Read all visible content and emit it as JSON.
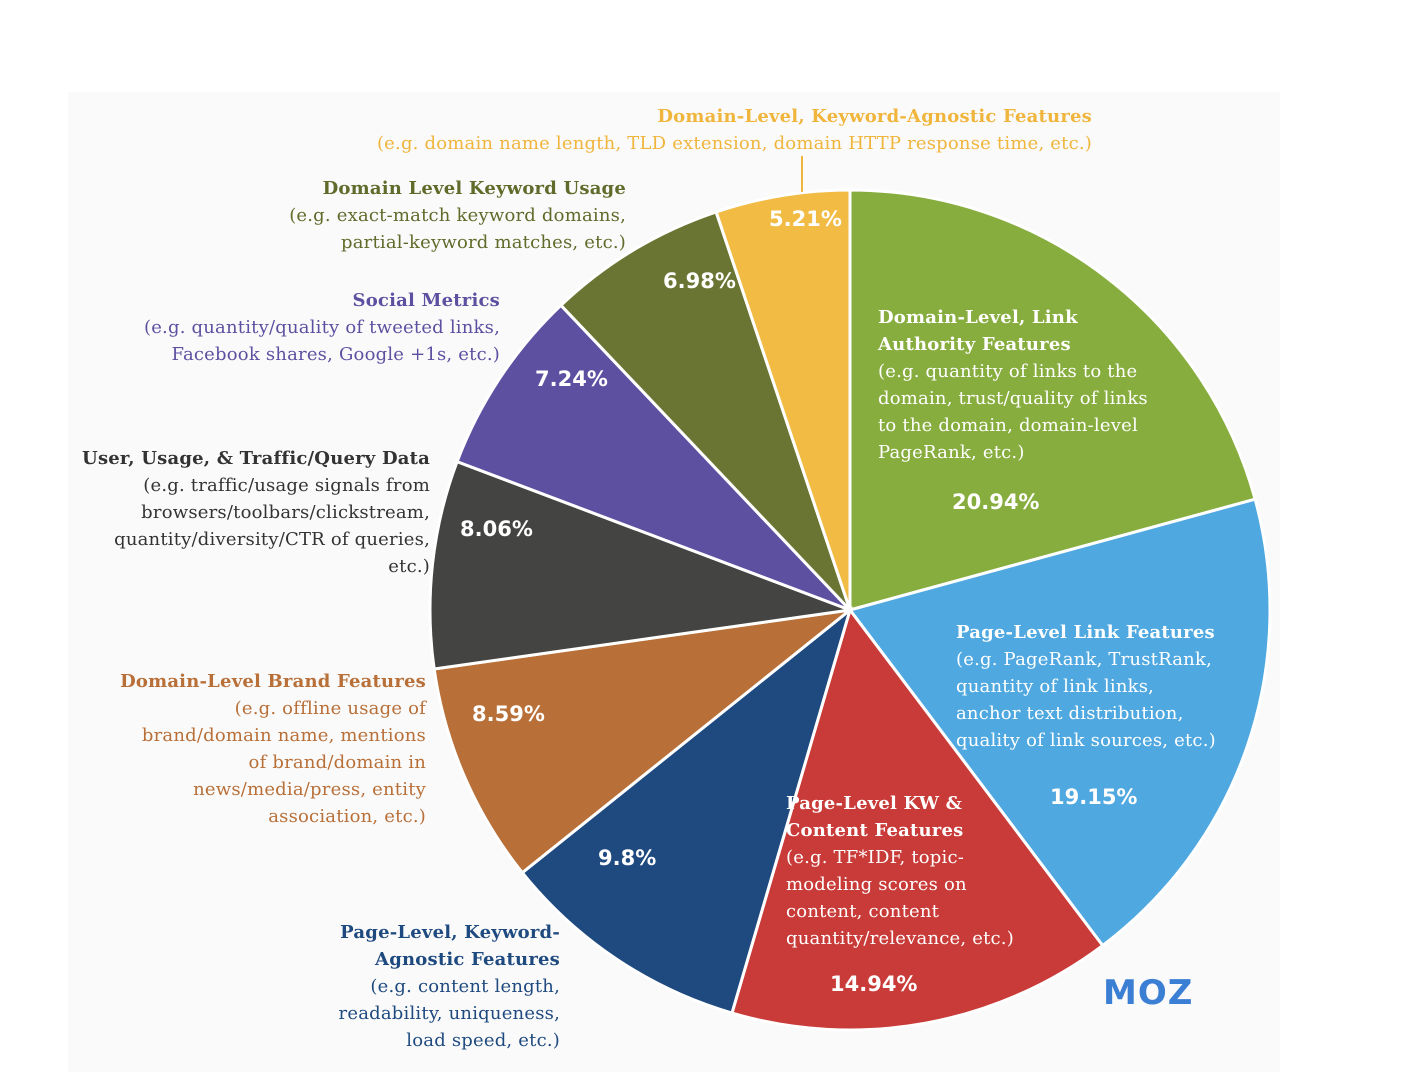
{
  "chart_data": {
    "type": "pie",
    "slices": [
      {
        "name": "Domain-Level, Link Authority Features",
        "desc": [
          "(e.g. quantity of links to the",
          "domain, trust/quality of links",
          "to the domain, domain-level",
          "PageRank, etc.)"
        ],
        "value": 20.94,
        "label": "20.94%",
        "color": "#88ad3f"
      },
      {
        "name": "Page-Level Link Features",
        "desc": [
          "(e.g. PageRank, TrustRank,",
          "quantity of link links,",
          "anchor text distribution,",
          "quality of link sources, etc.)"
        ],
        "value": 19.15,
        "label": "19.15%",
        "color": "#4fa8e0"
      },
      {
        "name": "Page-Level KW & Content Features",
        "desc": [
          "(e.g. TF*IDF, topic-",
          "modeling scores on",
          "content, content",
          "quantity/relevance, etc.)"
        ],
        "value": 14.94,
        "label": "14.94%",
        "color": "#c93b38"
      },
      {
        "name": "Page-Level, Keyword-Agnostic Features",
        "desc": [
          "(e.g. content length,",
          "readability, uniqueness,",
          "load speed, etc.)"
        ],
        "value": 9.8,
        "label": "9.8%",
        "color": "#1f4a80"
      },
      {
        "name": "Domain-Level Brand Features",
        "desc": [
          "(e.g. offline usage of",
          "brand/domain name, mentions",
          "of brand/domain in",
          "news/media/press, entity",
          "association, etc.)"
        ],
        "value": 8.59,
        "label": "8.59%",
        "color": "#b86f38"
      },
      {
        "name": "User, Usage, & Traffic/Query Data",
        "desc": [
          "(e.g. traffic/usage signals from",
          "browsers/toolbars/clickstream,",
          "quantity/diversity/CTR of queries,",
          "etc.)"
        ],
        "value": 8.06,
        "label": "8.06%",
        "color": "#444542"
      },
      {
        "name": "Social Metrics",
        "desc": [
          "(e.g. quantity/quality of tweeted links,",
          "Facebook shares, Google +1s, etc.)"
        ],
        "value": 7.24,
        "label": "7.24%",
        "color": "#5e50a1"
      },
      {
        "name": "Domain Level Keyword Usage",
        "desc": [
          "(e.g. exact-match keyword domains,",
          "partial-keyword matches, etc.)"
        ],
        "value": 6.98,
        "label": "6.98%",
        "color": "#6b7533"
      },
      {
        "name": "Domain-Level, Keyword-Agnostic Features",
        "desc": [
          "(e.g. domain name length, TLD extension, domain HTTP response time, etc.)"
        ],
        "value": 5.21,
        "label": "5.21%",
        "color": "#f2bb44"
      }
    ]
  },
  "label_colors": {
    "Domain-Level, Link Authority Features": "#ffffff",
    "Page-Level Link Features": "#ffffff",
    "Page-Level KW & Content Features": "#ffffff",
    "Page-Level, Keyword-Agnostic Features": "#1f4a80",
    "Domain-Level Brand Features": "#b86f38",
    "User, Usage, & Traffic/Query Data": "#333333",
    "Social Metrics": "#5e50a1",
    "Domain Level Keyword Usage": "#5f6b2a",
    "Domain-Level, Keyword-Agnostic Features": "#f0b53c"
  },
  "logo": "MOZ"
}
